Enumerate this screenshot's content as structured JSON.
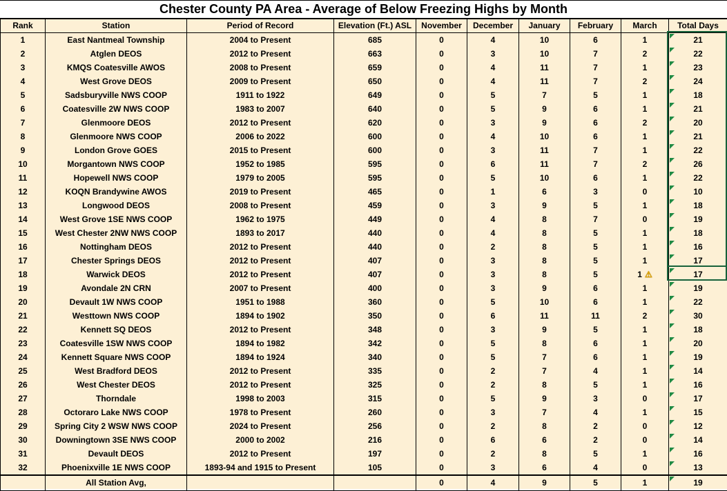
{
  "title": "Chester County PA Area - Average of Below Freezing Highs by Month",
  "columns": [
    "Rank",
    "Station",
    "Period of Record",
    "Elevation (Ft.) ASL",
    "November",
    "December",
    "January",
    "February",
    "March",
    "Total Days"
  ],
  "rows": [
    {
      "rank": 1,
      "station": "East Nantmeal Township",
      "period": "2004 to Present",
      "elevation": 685,
      "nov": 0,
      "dec": 4,
      "jan": 10,
      "feb": 6,
      "mar": 1,
      "total": 21
    },
    {
      "rank": 2,
      "station": "Atglen DEOS",
      "period": "2012 to Present",
      "elevation": 663,
      "nov": 0,
      "dec": 3,
      "jan": 10,
      "feb": 7,
      "mar": 2,
      "total": 22
    },
    {
      "rank": 3,
      "station": "KMQS Coatesville AWOS",
      "period": "2008 to Present",
      "elevation": 659,
      "nov": 0,
      "dec": 4,
      "jan": 11,
      "feb": 7,
      "mar": 1,
      "total": 23
    },
    {
      "rank": 4,
      "station": "West Grove DEOS",
      "period": "2009 to Present",
      "elevation": 650,
      "nov": 0,
      "dec": 4,
      "jan": 11,
      "feb": 7,
      "mar": 2,
      "total": 24
    },
    {
      "rank": 5,
      "station": "Sadsburyville NWS COOP",
      "period": "1911 to 1922",
      "elevation": 649,
      "nov": 0,
      "dec": 5,
      "jan": 7,
      "feb": 5,
      "mar": 1,
      "total": 18
    },
    {
      "rank": 6,
      "station": "Coatesville 2W NWS COOP",
      "period": "1983 to 2007",
      "elevation": 640,
      "nov": 0,
      "dec": 5,
      "jan": 9,
      "feb": 6,
      "mar": 1,
      "total": 21
    },
    {
      "rank": 7,
      "station": "Glenmoore DEOS",
      "period": "2012 to Present",
      "elevation": 620,
      "nov": 0,
      "dec": 3,
      "jan": 9,
      "feb": 6,
      "mar": 2,
      "total": 20
    },
    {
      "rank": 8,
      "station": "Glenmoore NWS COOP",
      "period": "2006 to 2022",
      "elevation": 600,
      "nov": 0,
      "dec": 4,
      "jan": 10,
      "feb": 6,
      "mar": 1,
      "total": 21
    },
    {
      "rank": 9,
      "station": "London Grove GOES",
      "period": "2015 to Present",
      "elevation": 600,
      "nov": 0,
      "dec": 3,
      "jan": 11,
      "feb": 7,
      "mar": 1,
      "total": 22
    },
    {
      "rank": 10,
      "station": "Morgantown NWS COOP",
      "period": "1952 to 1985",
      "elevation": 595,
      "nov": 0,
      "dec": 6,
      "jan": 11,
      "feb": 7,
      "mar": 2,
      "total": 26
    },
    {
      "rank": 11,
      "station": "Hopewell NWS COOP",
      "period": "1979 to 2005",
      "elevation": 595,
      "nov": 0,
      "dec": 5,
      "jan": 10,
      "feb": 6,
      "mar": 1,
      "total": 22
    },
    {
      "rank": 12,
      "station": "KOQN Brandywine AWOS",
      "period": "2019 to Present",
      "elevation": 465,
      "nov": 0,
      "dec": 1,
      "jan": 6,
      "feb": 3,
      "mar": 0,
      "total": 10
    },
    {
      "rank": 13,
      "station": "Longwood DEOS",
      "period": "2008 to Present",
      "elevation": 459,
      "nov": 0,
      "dec": 3,
      "jan": 9,
      "feb": 5,
      "mar": 1,
      "total": 18
    },
    {
      "rank": 14,
      "station": "West Grove 1SE NWS COOP",
      "period": "1962 to 1975",
      "elevation": 449,
      "nov": 0,
      "dec": 4,
      "jan": 8,
      "feb": 7,
      "mar": 0,
      "total": 19
    },
    {
      "rank": 15,
      "station": "West Chester  2NW NWS COOP",
      "period": "1893 to 2017",
      "elevation": 440,
      "nov": 0,
      "dec": 4,
      "jan": 8,
      "feb": 5,
      "mar": 1,
      "total": 18
    },
    {
      "rank": 16,
      "station": "Nottingham DEOS",
      "period": "2012 to Present",
      "elevation": 440,
      "nov": 0,
      "dec": 2,
      "jan": 8,
      "feb": 5,
      "mar": 1,
      "total": 16
    },
    {
      "rank": 17,
      "station": "Chester Springs DEOS",
      "period": "2012 to Present",
      "elevation": 407,
      "nov": 0,
      "dec": 3,
      "jan": 8,
      "feb": 5,
      "mar": 1,
      "total": 17
    },
    {
      "rank": 18,
      "station": "Warwick DEOS",
      "period": "2012 to Present",
      "elevation": 407,
      "nov": 0,
      "dec": 3,
      "jan": 8,
      "feb": 5,
      "mar": 1,
      "total": 17,
      "warning": true
    },
    {
      "rank": 19,
      "station": "Avondale 2N CRN",
      "period": "2007 to Present",
      "elevation": 400,
      "nov": 0,
      "dec": 3,
      "jan": 9,
      "feb": 6,
      "mar": 1,
      "total": 19
    },
    {
      "rank": 20,
      "station": "Devault 1W NWS COOP",
      "period": "1951 to 1988",
      "elevation": 360,
      "nov": 0,
      "dec": 5,
      "jan": 10,
      "feb": 6,
      "mar": 1,
      "total": 22
    },
    {
      "rank": 21,
      "station": "Westtown NWS COOP",
      "period": "1894 to 1902",
      "elevation": 350,
      "nov": 0,
      "dec": 6,
      "jan": 11,
      "feb": 11,
      "mar": 2,
      "total": 30
    },
    {
      "rank": 22,
      "station": "Kennett SQ DEOS",
      "period": "2012 to Present",
      "elevation": 348,
      "nov": 0,
      "dec": 3,
      "jan": 9,
      "feb": 5,
      "mar": 1,
      "total": 18
    },
    {
      "rank": 23,
      "station": "Coatesville 1SW NWS COOP",
      "period": "1894 to 1982",
      "elevation": 342,
      "nov": 0,
      "dec": 5,
      "jan": 8,
      "feb": 6,
      "mar": 1,
      "total": 20
    },
    {
      "rank": 24,
      "station": "Kennett Square NWS COOP",
      "period": "1894 to 1924",
      "elevation": 340,
      "nov": 0,
      "dec": 5,
      "jan": 7,
      "feb": 6,
      "mar": 1,
      "total": 19
    },
    {
      "rank": 25,
      "station": "West Bradford DEOS",
      "period": "2012 to Present",
      "elevation": 335,
      "nov": 0,
      "dec": 2,
      "jan": 7,
      "feb": 4,
      "mar": 1,
      "total": 14
    },
    {
      "rank": 26,
      "station": "West Chester DEOS",
      "period": "2012 to Present",
      "elevation": 325,
      "nov": 0,
      "dec": 2,
      "jan": 8,
      "feb": 5,
      "mar": 1,
      "total": 16
    },
    {
      "rank": 27,
      "station": "Thorndale",
      "period": "1998 to 2003",
      "elevation": 315,
      "nov": 0,
      "dec": 5,
      "jan": 9,
      "feb": 3,
      "mar": 0,
      "total": 17
    },
    {
      "rank": 28,
      "station": "Octoraro Lake NWS COOP",
      "period": "1978 to Present",
      "elevation": 260,
      "nov": 0,
      "dec": 3,
      "jan": 7,
      "feb": 4,
      "mar": 1,
      "total": 15
    },
    {
      "rank": 29,
      "station": "Spring City 2 WSW NWS COOP",
      "period": "2024 to Present",
      "elevation": 256,
      "nov": 0,
      "dec": 2,
      "jan": 8,
      "feb": 2,
      "mar": 0,
      "total": 12
    },
    {
      "rank": 30,
      "station": "Downingtown 3SE NWS COOP",
      "period": "2000 to 2002",
      "elevation": 216,
      "nov": 0,
      "dec": 6,
      "jan": 6,
      "feb": 2,
      "mar": 0,
      "total": 14
    },
    {
      "rank": 31,
      "station": "Devault DEOS",
      "period": "2012 to Present",
      "elevation": 197,
      "nov": 0,
      "dec": 2,
      "jan": 8,
      "feb": 5,
      "mar": 1,
      "total": 16
    },
    {
      "rank": 32,
      "station": "Phoenixville 1E NWS COOP",
      "period": "1893-94 and 1915 to Present",
      "elevation": 105,
      "nov": 0,
      "dec": 3,
      "jan": 6,
      "feb": 4,
      "mar": 0,
      "total": 13
    }
  ],
  "footer": {
    "label": "All Station Avg,",
    "nov": 0,
    "dec": 4,
    "jan": 9,
    "feb": 5,
    "mar": 1,
    "total": 19
  },
  "icons": {
    "error_checking_warning": "⚠",
    "formula_error_triangle": "css-corner-triangle"
  },
  "colors": {
    "cell_background": "#FDF0D5",
    "title_background": "#FFFFFF",
    "grid_border": "#000000",
    "text": "#000000",
    "formula_triangle_green": "#1F8A44",
    "selection_border_green": "#17613A",
    "warning_icon_yellow": "#E0A400"
  }
}
